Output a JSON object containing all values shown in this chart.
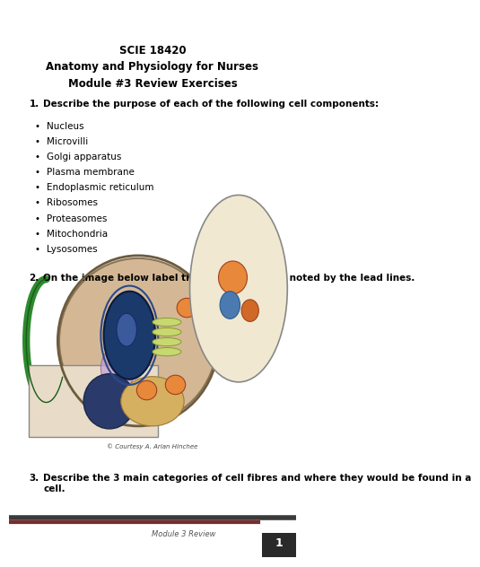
{
  "title_line1": "SCIE 18420",
  "title_line2": "Anatomy and Physiology for Nurses",
  "title_line3": "Module #3 Review Exercises",
  "q1_label": "1.",
  "q1_text": "Describe the purpose of each of the following cell components:",
  "bullet_items": [
    "Nucleus",
    "Microvilli",
    "Golgi apparatus",
    "Plasma membrane",
    "Endoplasmic reticulum",
    "Ribosomes",
    "Proteasomes",
    "Mitochondria",
    "Lysosomes"
  ],
  "q2_label": "2.",
  "q2_text": "On the image below label the parts of the cell noted by the lead lines.",
  "q3_label": "3.",
  "q3_text": "Describe the 3 main categories of cell fibres and where they would be found in a\ncell.",
  "footer_text": "Module 3 Review",
  "footer_page": "1",
  "bg_color": "#ffffff",
  "text_color": "#000000",
  "footer_bar_color1": "#7b2d2d",
  "footer_bar_color2": "#3a3a3a",
  "footer_page_bg": "#2a2a2a",
  "title_fontsize": 8.5,
  "body_fontsize": 7.5,
  "bold_fontsize": 7.5,
  "footer_fontsize": 6.0
}
